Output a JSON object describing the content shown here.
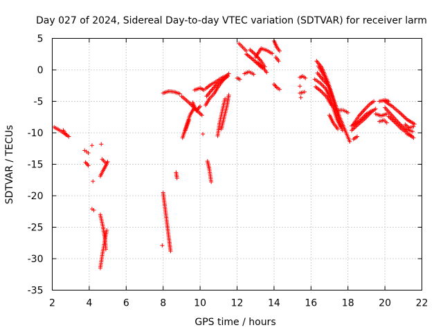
{
  "chart_data": {
    "type": "scatter",
    "title": "Day 027 of 2024, Sidereal Day-to-day VTEC variation (SDTVAR) for receiver larm",
    "xlabel": "GPS time / hours",
    "ylabel": "SDTVAR / TECUs",
    "xlim": [
      2,
      22
    ],
    "ylim": [
      -35,
      5
    ],
    "xticks": [
      "2",
      "4",
      "6",
      "8",
      "10",
      "12",
      "14",
      "16",
      "18",
      "20",
      "22"
    ],
    "yticks": [
      "5",
      "0",
      "-5",
      "-10",
      "-15",
      "-20",
      "-25",
      "-30",
      "-35"
    ],
    "xtick_values": [
      2,
      4,
      6,
      8,
      10,
      12,
      14,
      16,
      18,
      20,
      22
    ],
    "ytick_values": [
      5,
      0,
      -5,
      -10,
      -15,
      -20,
      -25,
      -30,
      -35
    ],
    "grid": true,
    "marker": "plus",
    "color": "#ff0000",
    "segments": [
      [
        [
          2.1,
          -9.1
        ],
        [
          2.4,
          -9.6
        ],
        [
          2.7,
          -10.2
        ],
        [
          2.9,
          -10.6
        ]
      ],
      [
        [
          2.6,
          -9.6
        ],
        [
          2.75,
          -10.3
        ]
      ],
      [
        [
          3.75,
          -12.8
        ],
        [
          3.85,
          -13.0
        ],
        [
          3.95,
          -13.2
        ]
      ],
      [
        [
          3.8,
          -14.7
        ],
        [
          3.95,
          -15.2
        ]
      ],
      [
        [
          4.15,
          -12.0
        ]
      ],
      [
        [
          4.2,
          -17.7
        ]
      ],
      [
        [
          4.15,
          -22.1
        ],
        [
          4.25,
          -22.3
        ]
      ],
      [
        [
          4.65,
          -11.8
        ]
      ],
      [
        [
          4.6,
          -16.9
        ],
        [
          4.75,
          -16.0
        ],
        [
          4.9,
          -15.2
        ],
        [
          5.0,
          -14.6
        ]
      ],
      [
        [
          4.7,
          -14.2
        ],
        [
          4.9,
          -14.8
        ]
      ],
      [
        [
          4.6,
          -23.0
        ],
        [
          4.75,
          -25.0
        ],
        [
          4.85,
          -26.8
        ],
        [
          4.9,
          -28.5
        ]
      ],
      [
        [
          4.6,
          -31.5
        ],
        [
          4.7,
          -29.5
        ],
        [
          4.85,
          -27.0
        ],
        [
          4.95,
          -25.5
        ]
      ],
      [
        [
          7.95,
          -27.9
        ]
      ],
      [
        [
          8.0,
          -19.5
        ],
        [
          8.15,
          -23.0
        ],
        [
          8.3,
          -26.5
        ],
        [
          8.4,
          -28.8
        ]
      ],
      [
        [
          8.7,
          -16.3
        ],
        [
          8.75,
          -17.2
        ]
      ],
      [
        [
          8.0,
          -3.7
        ],
        [
          8.3,
          -3.4
        ],
        [
          8.6,
          -3.5
        ],
        [
          8.9,
          -3.8
        ]
      ],
      [
        [
          9.0,
          -4.2
        ],
        [
          9.4,
          -5.2
        ],
        [
          9.8,
          -6.4
        ],
        [
          10.1,
          -7.2
        ]
      ],
      [
        [
          9.05,
          -10.8
        ],
        [
          9.25,
          -9.0
        ],
        [
          9.45,
          -7.2
        ],
        [
          9.65,
          -6.2
        ]
      ],
      [
        [
          9.2,
          -9.6
        ],
        [
          9.4,
          -8.0
        ]
      ],
      [
        [
          9.7,
          -3.2
        ],
        [
          10.0,
          -2.9
        ],
        [
          10.2,
          -3.2
        ]
      ],
      [
        [
          9.6,
          -5.2
        ],
        [
          9.8,
          -6.5
        ],
        [
          10.0,
          -5.8
        ]
      ],
      [
        [
          10.15,
          -10.2
        ]
      ],
      [
        [
          10.4,
          -14.5
        ],
        [
          10.5,
          -15.8
        ],
        [
          10.6,
          -17.8
        ]
      ],
      [
        [
          10.3,
          -5.6
        ],
        [
          10.5,
          -4.6
        ],
        [
          10.75,
          -3.8
        ],
        [
          11.0,
          -2.6
        ],
        [
          11.3,
          -1.4
        ],
        [
          11.55,
          -0.6
        ]
      ],
      [
        [
          10.3,
          -3.0
        ],
        [
          10.55,
          -2.4
        ],
        [
          10.85,
          -1.9
        ],
        [
          11.15,
          -1.3
        ],
        [
          11.45,
          -0.9
        ]
      ],
      [
        [
          10.35,
          -4.2
        ],
        [
          10.6,
          -3.3
        ],
        [
          10.9,
          -2.3
        ],
        [
          11.2,
          -1.7
        ],
        [
          11.5,
          -1.0
        ]
      ],
      [
        [
          10.95,
          -10.5
        ],
        [
          11.05,
          -8.5
        ],
        [
          11.2,
          -6.5
        ],
        [
          11.35,
          -4.6
        ]
      ],
      [
        [
          11.15,
          -9.4
        ],
        [
          11.3,
          -7.5
        ],
        [
          11.45,
          -5.8
        ],
        [
          11.55,
          -4.0
        ]
      ],
      [
        [
          12.1,
          4.2
        ],
        [
          12.3,
          3.6
        ],
        [
          12.5,
          3.0
        ]
      ],
      [
        [
          12.0,
          -1.3
        ],
        [
          12.15,
          -1.5
        ]
      ],
      [
        [
          12.4,
          -0.6
        ],
        [
          12.65,
          -0.3
        ],
        [
          12.9,
          -0.7
        ]
      ],
      [
        [
          12.5,
          2.5
        ],
        [
          12.8,
          1.8
        ],
        [
          13.1,
          1.0
        ],
        [
          13.35,
          0.3
        ]
      ],
      [
        [
          12.7,
          3.2
        ],
        [
          13.0,
          2.4
        ],
        [
          13.3,
          1.4
        ],
        [
          13.5,
          0.5
        ]
      ],
      [
        [
          13.0,
          2.0
        ],
        [
          13.3,
          3.4
        ],
        [
          13.6,
          3.1
        ],
        [
          13.9,
          2.6
        ]
      ],
      [
        [
          13.1,
          1.2
        ],
        [
          13.4,
          0.4
        ],
        [
          13.6,
          -0.4
        ]
      ],
      [
        [
          14.0,
          4.6
        ],
        [
          14.15,
          3.6
        ],
        [
          14.3,
          3.0
        ]
      ],
      [
        [
          14.1,
          2.0
        ],
        [
          14.25,
          1.4
        ]
      ],
      [
        [
          14.0,
          -2.3
        ],
        [
          14.15,
          -2.8
        ],
        [
          14.3,
          -3.1
        ]
      ],
      [
        [
          15.4,
          -1.2
        ],
        [
          15.55,
          -1.0
        ],
        [
          15.7,
          -1.3
        ]
      ],
      [
        [
          15.4,
          -2.6
        ]
      ],
      [
        [
          15.4,
          -3.7
        ],
        [
          15.65,
          -3.5
        ]
      ],
      [
        [
          15.45,
          -4.4
        ]
      ],
      [
        [
          16.3,
          1.4
        ],
        [
          16.6,
          0.3
        ],
        [
          16.9,
          -1.8
        ],
        [
          17.2,
          -4.5
        ],
        [
          17.55,
          -7.5
        ],
        [
          17.9,
          -10.0
        ],
        [
          18.1,
          -11.4
        ]
      ],
      [
        [
          16.4,
          0.6
        ],
        [
          16.7,
          -0.9
        ],
        [
          17.0,
          -3.0
        ],
        [
          17.3,
          -5.6
        ],
        [
          17.55,
          -8.2
        ],
        [
          17.7,
          -9.6
        ]
      ],
      [
        [
          16.2,
          -1.5
        ],
        [
          16.5,
          -2.1
        ],
        [
          16.8,
          -3.0
        ],
        [
          17.0,
          -4.2
        ],
        [
          17.2,
          -6.0
        ],
        [
          17.4,
          -7.8
        ],
        [
          17.6,
          -9.0
        ]
      ],
      [
        [
          16.25,
          -2.7
        ],
        [
          16.55,
          -3.4
        ],
        [
          16.85,
          -4.3
        ],
        [
          17.1,
          -5.6
        ]
      ],
      [
        [
          16.35,
          -0.5
        ],
        [
          16.65,
          -1.6
        ],
        [
          16.95,
          -2.5
        ]
      ],
      [
        [
          17.0,
          -7.2
        ],
        [
          17.2,
          -8.4
        ],
        [
          17.45,
          -9.4
        ]
      ],
      [
        [
          17.4,
          -6.4
        ],
        [
          17.75,
          -6.4
        ],
        [
          18.0,
          -6.8
        ]
      ],
      [
        [
          18.3,
          -11.0
        ],
        [
          18.5,
          -10.6
        ]
      ],
      [
        [
          18.3,
          -8.6
        ],
        [
          18.6,
          -7.3
        ],
        [
          18.9,
          -6.3
        ],
        [
          19.2,
          -5.4
        ],
        [
          19.4,
          -5.0
        ]
      ],
      [
        [
          18.2,
          -9.6
        ],
        [
          18.5,
          -8.8
        ],
        [
          18.9,
          -7.8
        ],
        [
          19.3,
          -6.6
        ],
        [
          19.5,
          -6.2
        ]
      ],
      [
        [
          18.2,
          -8.9
        ],
        [
          18.6,
          -8.2
        ],
        [
          19.0,
          -7.0
        ],
        [
          19.3,
          -6.5
        ]
      ],
      [
        [
          19.5,
          -7.0
        ],
        [
          19.8,
          -7.3
        ],
        [
          20.1,
          -7.0
        ]
      ],
      [
        [
          19.7,
          -8.2
        ],
        [
          19.95,
          -8.0
        ],
        [
          20.1,
          -8.4
        ]
      ],
      [
        [
          19.7,
          -5.0
        ],
        [
          20.0,
          -4.8
        ],
        [
          20.2,
          -5.0
        ]
      ],
      [
        [
          20.0,
          -5.0
        ],
        [
          20.4,
          -5.8
        ],
        [
          20.8,
          -6.8
        ],
        [
          21.2,
          -7.9
        ],
        [
          21.6,
          -8.6
        ]
      ],
      [
        [
          20.0,
          -6.0
        ],
        [
          20.4,
          -7.3
        ],
        [
          20.8,
          -8.6
        ],
        [
          21.1,
          -9.4
        ],
        [
          21.5,
          -9.8
        ]
      ],
      [
        [
          20.2,
          -7.4
        ],
        [
          20.6,
          -8.5
        ],
        [
          20.9,
          -9.4
        ],
        [
          21.2,
          -10.0
        ],
        [
          21.55,
          -10.8
        ]
      ],
      [
        [
          21.1,
          -8.7
        ],
        [
          21.3,
          -9.2
        ],
        [
          21.55,
          -9.0
        ]
      ],
      [
        [
          21.2,
          -10.2
        ],
        [
          21.45,
          -10.5
        ]
      ]
    ]
  }
}
